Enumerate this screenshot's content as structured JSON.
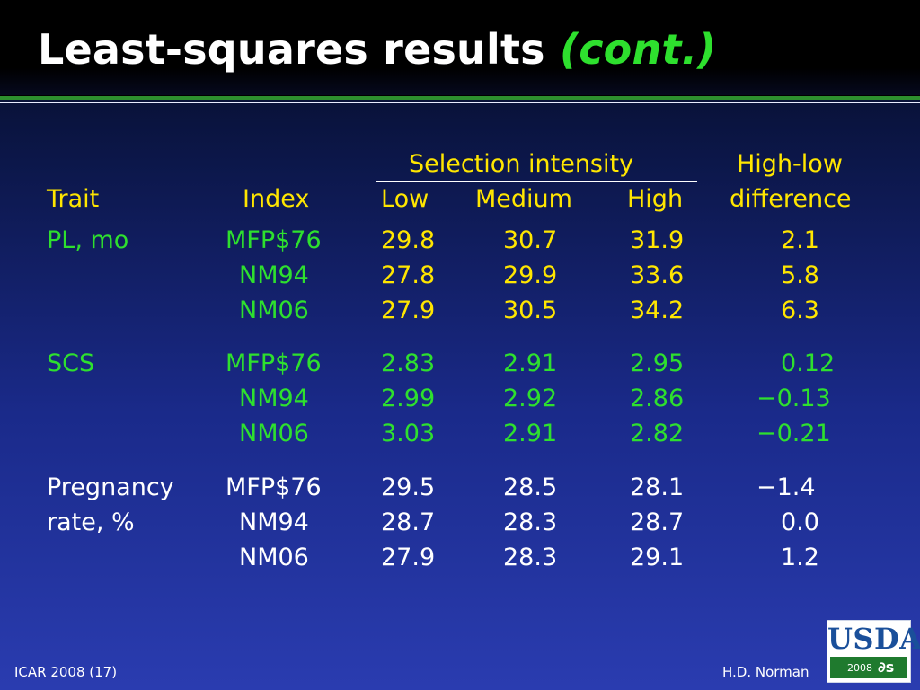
{
  "title": {
    "main": "Least-squares results",
    "sub": "(cont.)"
  },
  "table": {
    "group_header": "Selection intensity",
    "diff_header_line1": "High-low",
    "diff_header_line2": "difference",
    "col_trait": "Trait",
    "col_index": "Index",
    "col_low": "Low",
    "col_medium": "Medium",
    "col_high": "High",
    "groups": [
      {
        "trait_line1": "PL, mo",
        "trait_line2": "",
        "rows": [
          {
            "index": "MFP$76",
            "low": "29.8",
            "medium": "30.7",
            "high": "31.9",
            "diff": "2.1"
          },
          {
            "index": "NM94",
            "low": "27.8",
            "medium": "29.9",
            "high": "33.6",
            "diff": "5.8"
          },
          {
            "index": "NM06",
            "low": "27.9",
            "medium": "30.5",
            "high": "34.2",
            "diff": "6.3"
          }
        ]
      },
      {
        "trait_line1": "SCS",
        "trait_line2": "",
        "rows": [
          {
            "index": "MFP$76",
            "low": "2.83",
            "medium": "2.91",
            "high": "2.95",
            "diff": "0.12"
          },
          {
            "index": "NM94",
            "low": "2.99",
            "medium": "2.92",
            "high": "2.86",
            "diff": "−0.13"
          },
          {
            "index": "NM06",
            "low": "3.03",
            "medium": "2.91",
            "high": "2.82",
            "diff": "−0.21"
          }
        ]
      },
      {
        "trait_line1": "Pregnancy",
        "trait_line2": "rate, %",
        "rows": [
          {
            "index": "MFP$76",
            "low": "29.5",
            "medium": "28.5",
            "high": "28.1",
            "diff": "−1.4"
          },
          {
            "index": "NM94",
            "low": "28.7",
            "medium": "28.3",
            "high": "28.7",
            "diff": "0.0"
          },
          {
            "index": "NM06",
            "low": "27.9",
            "medium": "28.3",
            "high": "29.1",
            "diff": "1.2"
          }
        ]
      }
    ]
  },
  "footer": {
    "left": "ICAR 2008 (17)",
    "right": "H.D. Norman"
  },
  "logo": {
    "word": "USDA",
    "year": "2008"
  },
  "colors": {
    "green": "#2ee02e",
    "yellow": "#ffe600",
    "background_top": "#0a1440",
    "background_bottom": "#2a3cb0"
  }
}
